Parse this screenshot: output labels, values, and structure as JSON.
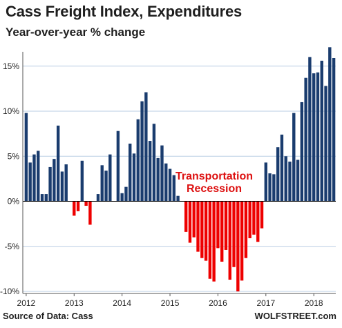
{
  "header": {
    "title": "Cass Freight Index, Expenditures",
    "subtitle": "Year-over-year % change"
  },
  "footer": {
    "source": "Source of Data: Cass",
    "credit": "WOLFSTREET.com"
  },
  "colors": {
    "positive": "#1a3c6e",
    "negative": "#ee0000",
    "annotation": "#dd1111",
    "grid": "#b9cde3",
    "axis": "#000000"
  },
  "chart_data": {
    "type": "bar",
    "title": "Cass Freight Index, Expenditures",
    "subtitle": "Year-over-year % change",
    "xlabel": "",
    "ylabel": "",
    "ylim": [
      -10,
      17
    ],
    "grid": true,
    "yticks": [
      15,
      10,
      5,
      0,
      -5,
      -10
    ],
    "ytick_labels": [
      "15%",
      "10%",
      "5%",
      "0%",
      "-5%",
      "-10%"
    ],
    "xtick_labels": [
      "2012",
      "2013",
      "2014",
      "2015",
      "2016",
      "2017",
      "2018"
    ],
    "annotation": [
      "Transportation",
      "Recession"
    ],
    "start": "2012-01",
    "frequency": "monthly",
    "values": [
      9.8,
      4.3,
      5.2,
      5.6,
      0.8,
      0.8,
      3.8,
      4.7,
      8.4,
      3.3,
      4.1,
      0.0,
      -1.6,
      -1.1,
      4.5,
      -0.5,
      -2.6,
      0.0,
      0.8,
      4.0,
      3.4,
      5.2,
      0.0,
      7.8,
      0.9,
      1.6,
      6.4,
      5.3,
      9.1,
      11.1,
      12.1,
      6.7,
      8.6,
      4.8,
      6.2,
      4.2,
      3.6,
      2.9,
      0.6,
      0.0,
      -3.4,
      -4.6,
      -4.0,
      -5.6,
      -6.3,
      -6.6,
      -8.6,
      -8.9,
      -5.2,
      -6.7,
      -5.4,
      -8.7,
      -7.3,
      -10.0,
      -8.8,
      -6.3,
      -4.1,
      -3.7,
      -4.5,
      -3.0,
      4.3,
      3.1,
      3.0,
      6.0,
      7.4,
      5.0,
      4.4,
      9.8,
      4.6,
      11.0,
      13.7,
      16.0,
      14.2,
      14.3,
      15.6,
      12.8,
      17.1,
      15.9
    ]
  }
}
